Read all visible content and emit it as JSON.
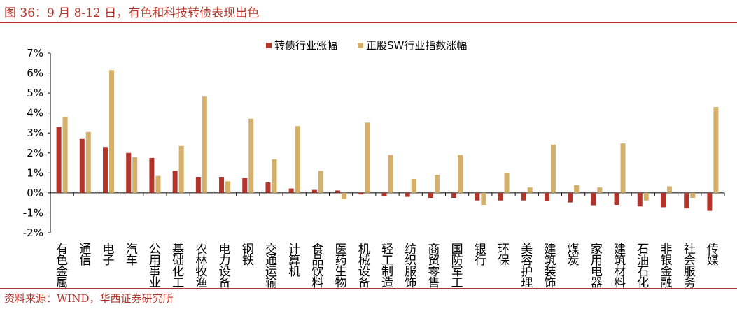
{
  "title": "图 36：9 月 8-12 日，有色和科技转债表现出色",
  "source": "资料来源：WIND，华西证券研究所",
  "colors": {
    "series1": "#b3342b",
    "series2": "#d4b06a",
    "accent": "#b3342b"
  },
  "chart_data": {
    "type": "bar",
    "categories": [
      "有色金属",
      "通信",
      "电子",
      "汽车",
      "公用事业",
      "基础化工",
      "农林牧渔",
      "电力设备",
      "钢铁",
      "交通运输",
      "计算机",
      "食品饮料",
      "医药生物",
      "机械设备",
      "轻工制造",
      "纺织服饰",
      "商贸零售",
      "国防军工",
      "银行",
      "环保",
      "美容护理",
      "建筑装饰",
      "煤炭",
      "家用电器",
      "建筑材料",
      "石油石化",
      "非银金融",
      "社会服务",
      "传媒"
    ],
    "series": [
      {
        "name": "转债行业涨幅",
        "color": "#b3342b",
        "values": [
          3.3,
          2.7,
          2.3,
          2.0,
          1.75,
          1.1,
          0.8,
          0.8,
          0.75,
          0.52,
          0.22,
          0.15,
          0.12,
          -0.08,
          -0.15,
          -0.2,
          -0.25,
          -0.25,
          -0.38,
          -0.38,
          -0.38,
          -0.42,
          -0.48,
          -0.62,
          -0.6,
          -0.68,
          -0.72,
          -0.78,
          -0.9
        ]
      },
      {
        "name": "正股SW行业指数涨幅",
        "color": "#d4b06a",
        "values": [
          3.8,
          3.05,
          6.15,
          1.78,
          0.85,
          2.35,
          4.82,
          0.58,
          3.72,
          1.68,
          3.35,
          1.1,
          -0.32,
          3.52,
          1.9,
          0.7,
          0.9,
          1.9,
          -0.6,
          1.0,
          0.27,
          2.42,
          0.38,
          0.27,
          2.48,
          -0.38,
          0.33,
          -0.25,
          4.3
        ]
      }
    ],
    "yticks": [
      "7%",
      "6%",
      "5%",
      "4%",
      "3%",
      "2%",
      "1%",
      "0%",
      "-1%",
      "-2%"
    ],
    "ylim": [
      -2,
      7
    ],
    "legend_position": "top-center"
  }
}
